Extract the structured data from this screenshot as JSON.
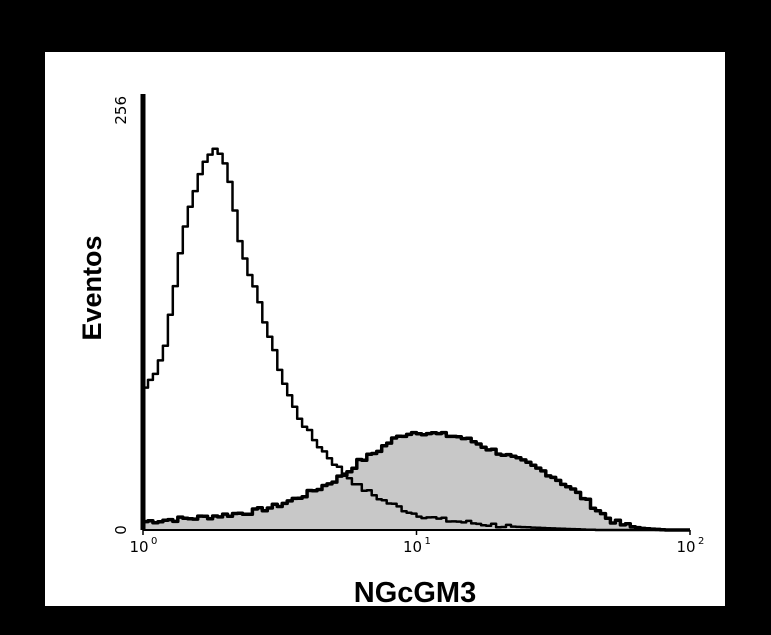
{
  "chart_data": {
    "type": "area",
    "xlabel": "NGcGM3",
    "ylabel": "Eventos",
    "x_scale": "log",
    "xlim": [
      1,
      100
    ],
    "ylim": [
      0,
      256
    ],
    "x_ticks": [
      {
        "base": "10",
        "exp": "0"
      },
      {
        "base": "10",
        "exp": "1"
      },
      {
        "base": "10",
        "exp": "2"
      }
    ],
    "y_ticks": [
      "0",
      "256"
    ],
    "grid": false,
    "series": [
      {
        "style": "outline",
        "color": "#000000",
        "x": [
          1.0,
          1.08,
          1.18,
          1.3,
          1.42,
          1.55,
          1.7,
          1.8,
          1.9,
          2.05,
          2.2,
          2.45,
          2.8,
          3.2,
          3.6,
          4.2,
          5.0,
          6.0,
          7.5,
          9.5,
          12,
          16,
          22,
          30,
          45,
          65,
          100
        ],
        "y": [
          84,
          92,
          108,
          150,
          185,
          205,
          222,
          225,
          222,
          205,
          172,
          148,
          118,
          88,
          68,
          52,
          38,
          26,
          17,
          10,
          6,
          4,
          2,
          1,
          0,
          0,
          0
        ]
      },
      {
        "style": "filled",
        "color": "#000000",
        "fill": "#c8c8c8",
        "x": [
          1.0,
          1.2,
          1.5,
          2.0,
          2.5,
          3.0,
          3.5,
          4.0,
          4.5,
          5.0,
          5.5,
          6.0,
          7.0,
          8.0,
          9.0,
          10.0,
          11.0,
          12.5,
          14.0,
          16.0,
          18.0,
          21.0,
          25.0,
          30.0,
          35.0,
          40.0,
          45.0,
          50.0,
          56.0,
          65.0,
          80.0,
          100.0
        ],
        "y": [
          5,
          6,
          7,
          9,
          11,
          14,
          18,
          22,
          26,
          30,
          34,
          40,
          46,
          53,
          57,
          58,
          57,
          56,
          55,
          52,
          48,
          44,
          39,
          33,
          26,
          19,
          12,
          6,
          3,
          1,
          0,
          0
        ]
      }
    ]
  }
}
